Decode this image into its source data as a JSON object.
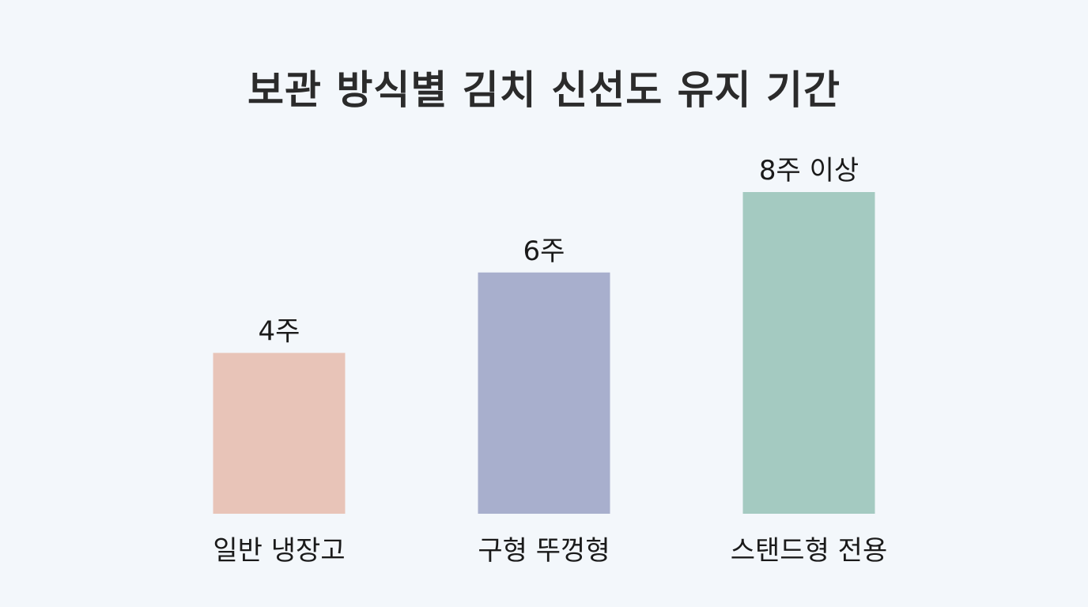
{
  "chart_data": {
    "type": "bar",
    "title": "보관 방식별 김치 신선도 유지 기간",
    "xlabel": "",
    "ylabel": "",
    "categories": [
      "일반 냉장고",
      "구형 뚜껑형",
      "스탠드형 전용"
    ],
    "values": [
      4,
      6,
      8
    ],
    "value_labels": [
      "4주",
      "6주",
      "8주 이상"
    ],
    "ylim": [
      0,
      8
    ],
    "grid": false,
    "colors": [
      "#e8c4b8",
      "#a8afcd",
      "#a4cac1"
    ]
  }
}
